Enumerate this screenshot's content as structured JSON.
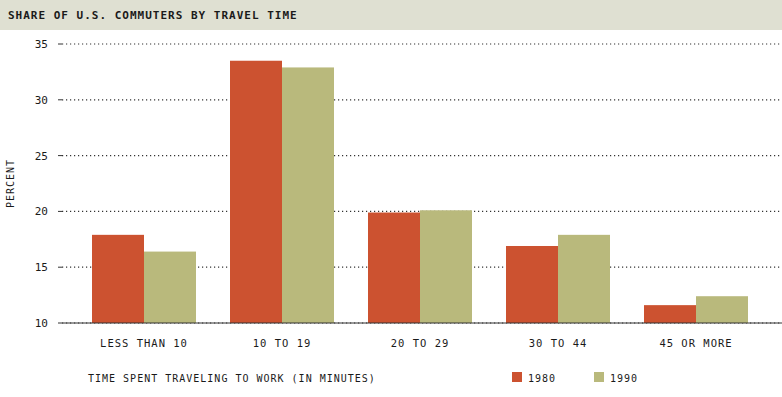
{
  "chart_data": {
    "type": "bar",
    "title": "SHARE OF U.S. COMMUTERS BY TRAVEL TIME",
    "x_label": "TIME SPENT TRAVELING TO WORK (IN MINUTES)",
    "y_label": "PERCENT",
    "categories": [
      "LESS THAN 10",
      "10 TO 19",
      "20 TO 29",
      "30 TO 44",
      "45 OR MORE"
    ],
    "series": [
      {
        "name": "1980",
        "color": "#cc5230",
        "values": [
          17.9,
          33.5,
          19.9,
          16.9,
          11.6
        ]
      },
      {
        "name": "1990",
        "color": "#b9b97c",
        "values": [
          16.4,
          32.9,
          20.1,
          17.9,
          12.4
        ]
      }
    ],
    "ylim": [
      10,
      35
    ],
    "yticks": [
      10,
      15,
      20,
      25,
      30,
      35
    ],
    "grid": true,
    "legend": "bottom"
  }
}
